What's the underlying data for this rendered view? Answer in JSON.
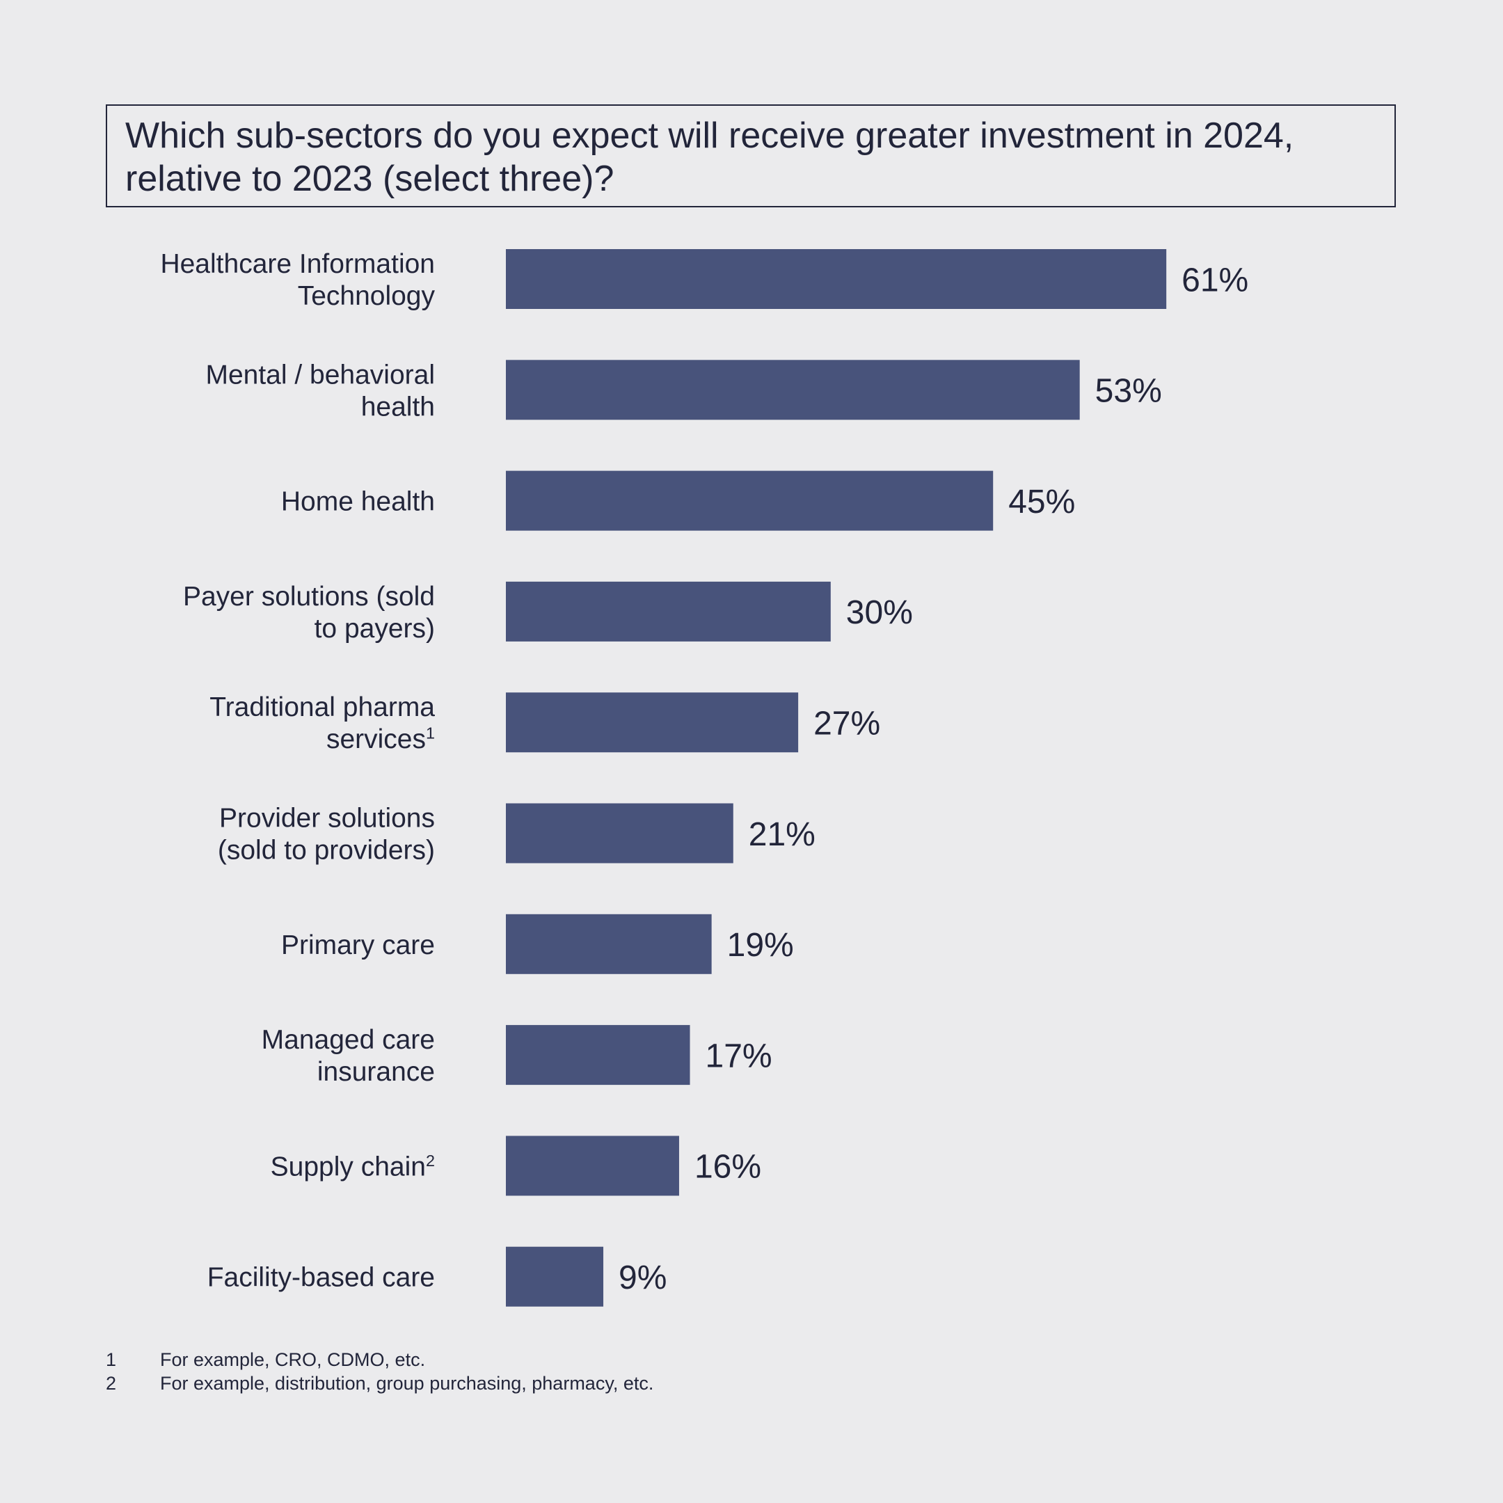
{
  "chart_data": {
    "type": "bar",
    "orientation": "horizontal",
    "title": "Which sub-sectors do you expect will receive greater investment in 2024, relative to 2023 (select three)?",
    "categories": [
      {
        "lines": [
          "Healthcare Information",
          "Technology"
        ],
        "sup": ""
      },
      {
        "lines": [
          "Mental / behavioral",
          "health"
        ],
        "sup": ""
      },
      {
        "lines": [
          "Home health"
        ],
        "sup": ""
      },
      {
        "lines": [
          "Payer solutions (sold",
          "to payers)"
        ],
        "sup": ""
      },
      {
        "lines": [
          "Traditional pharma",
          "services"
        ],
        "sup": "1"
      },
      {
        "lines": [
          "Provider solutions",
          "(sold to providers)"
        ],
        "sup": ""
      },
      {
        "lines": [
          "Primary care"
        ],
        "sup": ""
      },
      {
        "lines": [
          "Managed care",
          "insurance"
        ],
        "sup": ""
      },
      {
        "lines": [
          "Supply chain"
        ],
        "sup": "2"
      },
      {
        "lines": [
          "Facility-based care"
        ],
        "sup": ""
      }
    ],
    "values": [
      61,
      53,
      45,
      30,
      27,
      21,
      19,
      17,
      16,
      9
    ],
    "value_labels": [
      "61%",
      "53%",
      "45%",
      "30%",
      "27%",
      "21%",
      "19%",
      "17%",
      "16%",
      "9%"
    ],
    "xlim": [
      0,
      100
    ],
    "bar_color": "#48537b",
    "grid": false,
    "legend": "none"
  },
  "footnotes": [
    {
      "num": "1",
      "text": "For example, CRO, CDMO, etc."
    },
    {
      "num": "2",
      "text": "For example, distribution, group purchasing, pharmacy, etc."
    }
  ]
}
